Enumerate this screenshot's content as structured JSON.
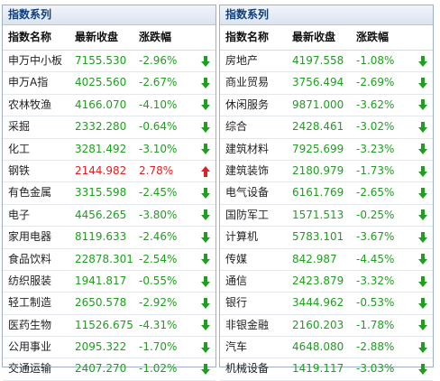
{
  "colors": {
    "up": "#e02020",
    "down": "#1f9e1f",
    "title": "#123f7a"
  },
  "panels": [
    {
      "title": "指数系列",
      "headers": {
        "name": "指数名称",
        "close": "最新收盘",
        "change": "涨跌幅"
      },
      "rows": [
        {
          "name": "申万中小板",
          "close": "7155.530",
          "change": "-2.96%",
          "direction": "down"
        },
        {
          "name": "申万A指",
          "close": "4025.560",
          "change": "-2.67%",
          "direction": "down"
        },
        {
          "name": "农林牧渔",
          "close": "4166.070",
          "change": "-4.10%",
          "direction": "down"
        },
        {
          "name": "采掘",
          "close": "2332.280",
          "change": "-0.64%",
          "direction": "down"
        },
        {
          "name": "化工",
          "close": "3281.492",
          "change": "-3.10%",
          "direction": "down"
        },
        {
          "name": "钢铁",
          "close": "2144.982",
          "change": "2.78%",
          "direction": "up"
        },
        {
          "name": "有色金属",
          "close": "3315.598",
          "change": "-2.45%",
          "direction": "down"
        },
        {
          "name": "电子",
          "close": "4456.265",
          "change": "-3.80%",
          "direction": "down"
        },
        {
          "name": "家用电器",
          "close": "8119.633",
          "change": "-2.46%",
          "direction": "down"
        },
        {
          "name": "食品饮料",
          "close": "22878.301",
          "change": "-2.54%",
          "direction": "down"
        },
        {
          "name": "纺织服装",
          "close": "1941.817",
          "change": "-0.55%",
          "direction": "down"
        },
        {
          "name": "轻工制造",
          "close": "2650.578",
          "change": "-2.92%",
          "direction": "down"
        },
        {
          "name": "医药生物",
          "close": "11526.675",
          "change": "-4.31%",
          "direction": "down"
        },
        {
          "name": "公用事业",
          "close": "2095.322",
          "change": "-1.70%",
          "direction": "down"
        },
        {
          "name": "交通运输",
          "close": "2407.270",
          "change": "-1.02%",
          "direction": "down"
        }
      ]
    },
    {
      "title": "指数系列",
      "headers": {
        "name": "指数名称",
        "close": "最新收盘",
        "change": "涨跌幅"
      },
      "rows": [
        {
          "name": "房地产",
          "close": "4197.558",
          "change": "-1.08%",
          "direction": "down"
        },
        {
          "name": "商业贸易",
          "close": "3756.494",
          "change": "-2.69%",
          "direction": "down"
        },
        {
          "name": "休闲服务",
          "close": "9871.000",
          "change": "-3.62%",
          "direction": "down"
        },
        {
          "name": "综合",
          "close": "2428.461",
          "change": "-3.02%",
          "direction": "down"
        },
        {
          "name": "建筑材料",
          "close": "7925.699",
          "change": "-3.23%",
          "direction": "down"
        },
        {
          "name": "建筑装饰",
          "close": "2180.979",
          "change": "-1.73%",
          "direction": "down"
        },
        {
          "name": "电气设备",
          "close": "6161.769",
          "change": "-2.65%",
          "direction": "down"
        },
        {
          "name": "国防军工",
          "close": "1571.513",
          "change": "-0.25%",
          "direction": "down"
        },
        {
          "name": "计算机",
          "close": "5783.101",
          "change": "-3.67%",
          "direction": "down"
        },
        {
          "name": "传媒",
          "close": "842.987",
          "change": "-4.45%",
          "direction": "down"
        },
        {
          "name": "通信",
          "close": "2423.879",
          "change": "-3.32%",
          "direction": "down"
        },
        {
          "name": "银行",
          "close": "3444.962",
          "change": "-0.53%",
          "direction": "down"
        },
        {
          "name": "非银金融",
          "close": "2160.203",
          "change": "-1.78%",
          "direction": "down"
        },
        {
          "name": "汽车",
          "close": "4648.080",
          "change": "-2.88%",
          "direction": "down"
        },
        {
          "name": "机械设备",
          "close": "1419.117",
          "change": "-3.03%",
          "direction": "down"
        }
      ]
    }
  ]
}
